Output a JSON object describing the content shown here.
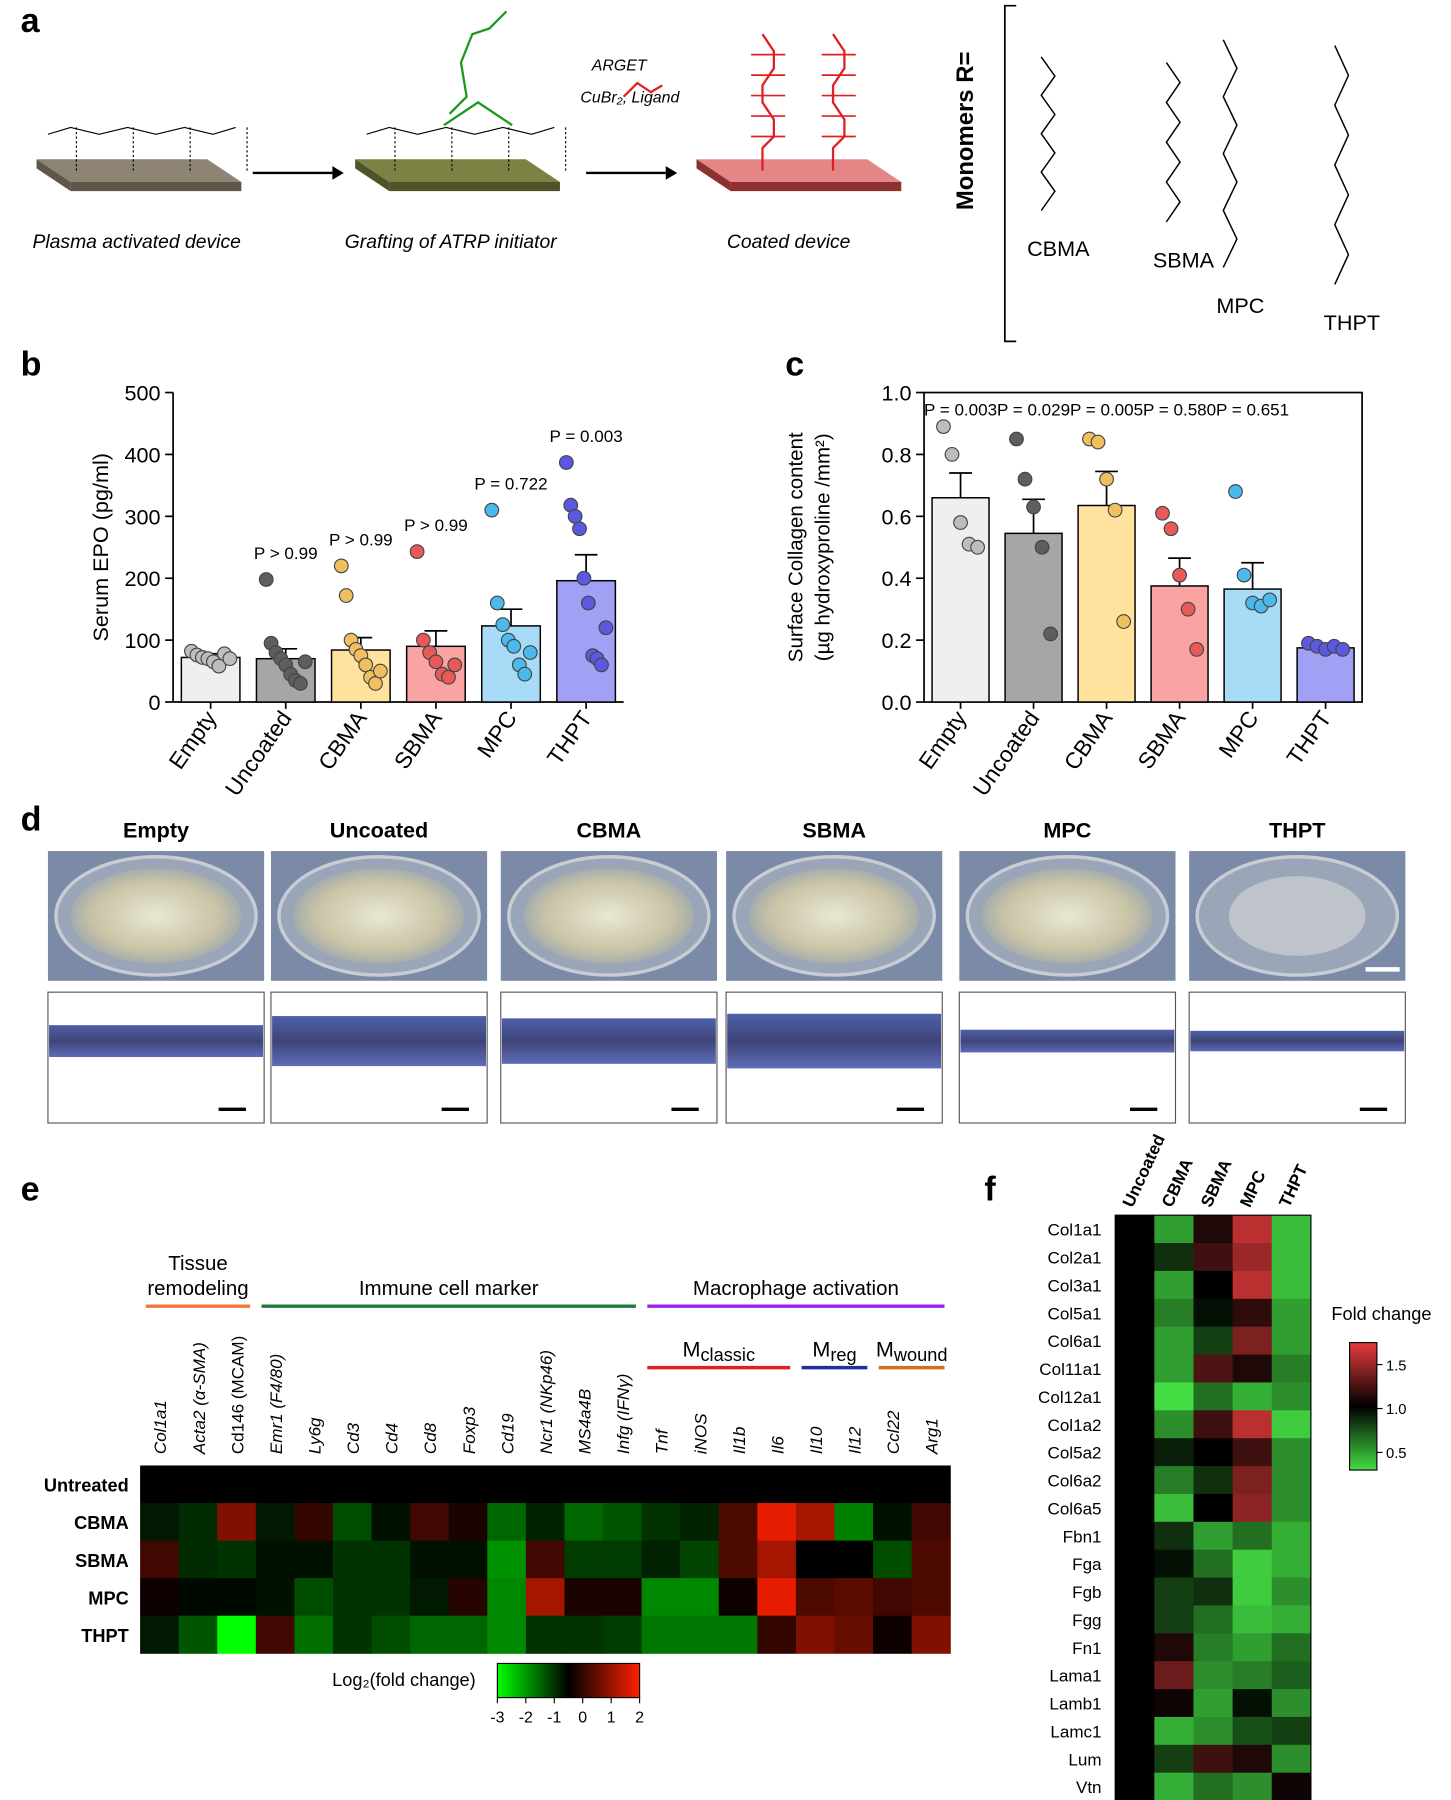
{
  "panel_labels": [
    "a",
    "b",
    "c",
    "d",
    "e",
    "f"
  ],
  "panel_a": {
    "steps": [
      "Plasma activated device",
      "Grafting of ATRP initiator",
      "Coated device"
    ],
    "conditions": [
      "ARGET",
      "CuBr₂,  Ligand"
    ],
    "monomers_title": "Monomers R=",
    "monomers": [
      "CBMA",
      "SBMA",
      "MPC",
      "THPT"
    ]
  },
  "panel_d": {
    "titles": [
      "Empty",
      "Uncoated",
      "CBMA",
      "SBMA",
      "MPC",
      "THPT"
    ]
  },
  "chart_data": [
    {
      "type": "bar",
      "ylabel": "Serum  EPO (pg/ml)",
      "categories": [
        "Empty",
        "Uncoated",
        "CBMA",
        "SBMA",
        "MPC",
        "THPT"
      ],
      "values": [
        72,
        70,
        84,
        90,
        123,
        196
      ],
      "errors": [
        6,
        16,
        20,
        25,
        27,
        42
      ],
      "points": [
        [
          82,
          76,
          72,
          70,
          65,
          58,
          78,
          70
        ],
        [
          198,
          95,
          80,
          70,
          60,
          45,
          35,
          30,
          65
        ],
        [
          220,
          172,
          100,
          85,
          75,
          60,
          40,
          30,
          50
        ],
        [
          243,
          100,
          80,
          65,
          45,
          40,
          60
        ],
        [
          310,
          160,
          125,
          100,
          90,
          60,
          45,
          80
        ],
        [
          387,
          318,
          300,
          280,
          200,
          160,
          75,
          70,
          60,
          120
        ]
      ],
      "colors": [
        "#efefef",
        "#a6a6a6",
        "#ffe29e",
        "#f9a3a3",
        "#a8dcf6",
        "#a0a0f4"
      ],
      "point_colors": [
        "#bdbdbd",
        "#5e5e5e",
        "#f0c060",
        "#e85a5a",
        "#4bb9ec",
        "#5a5ae0"
      ],
      "annotations": [
        null,
        {
          "text": "P > 0.99",
          "color": "#e02020"
        },
        {
          "text": "P > 0.99",
          "color": "#e02020"
        },
        {
          "text": "P > 0.99",
          "color": "#e02020"
        },
        {
          "text": "P = 0.722",
          "color": "#e02020"
        },
        {
          "text": "P = 0.003",
          "color": "#000000"
        }
      ],
      "ylim": [
        0,
        500
      ],
      "yticks": [
        0,
        100,
        200,
        300,
        400,
        500
      ]
    },
    {
      "type": "bar",
      "ylabel": [
        "Surface Collagen content",
        "(µg hydroxyproline /mm²)"
      ],
      "categories": [
        "Empty",
        "Uncoated",
        "CBMA",
        "SBMA",
        "MPC",
        "THPT"
      ],
      "values": [
        0.66,
        0.545,
        0.635,
        0.375,
        0.365,
        0.175
      ],
      "errors": [
        0.08,
        0.11,
        0.11,
        0.09,
        0.085,
        0.01
      ],
      "points": [
        [
          0.89,
          0.8,
          0.58,
          0.51,
          0.5
        ],
        [
          0.85,
          0.72,
          0.63,
          0.5,
          0.22
        ],
        [
          0.85,
          0.84,
          0.72,
          0.62,
          0.26
        ],
        [
          0.61,
          0.56,
          0.41,
          0.3,
          0.17
        ],
        [
          0.68,
          0.41,
          0.32,
          0.31,
          0.33
        ],
        [
          0.19,
          0.18,
          0.17,
          0.18,
          0.17
        ]
      ],
      "colors": [
        "#efefef",
        "#a6a6a6",
        "#ffe29e",
        "#f9a3a3",
        "#a8dcf6",
        "#a0a0f4"
      ],
      "point_colors": [
        "#bdbdbd",
        "#5e5e5e",
        "#f0c060",
        "#e85a5a",
        "#4bb9ec",
        "#5a5ae0"
      ],
      "annotations": [
        {
          "text": "P = 0.003",
          "color": "#000000"
        },
        {
          "text": "P = 0.029",
          "color": "#000000"
        },
        {
          "text": "P = 0.005",
          "color": "#000000"
        },
        {
          "text": "P = 0.580",
          "color": "#e02020"
        },
        {
          "text": "P = 0.651",
          "color": "#e02020"
        },
        null
      ],
      "ylim": [
        0,
        1
      ],
      "yticks": [
        {
          "value": 0,
          "label": "0.0"
        },
        0.2,
        0.4,
        0.6,
        0.8,
        {
          "value": 1,
          "label": "1.0"
        }
      ]
    },
    {
      "type": "heatmap",
      "groups": [
        {
          "lines": [
            "Tissue",
            "remodeling"
          ],
          "color": "#f4743b"
        },
        {
          "lines": [
            "Immune cell marker"
          ],
          "color": "#1b7a3e"
        },
        {
          "lines": [
            "Macrophage activation"
          ],
          "color": "#a020f0"
        }
      ],
      "subgroups": [
        {
          "main": "M",
          "sub": "classic",
          "color": "#e02020"
        },
        {
          "main": "M",
          "sub": "reg",
          "color": "#2030a0"
        },
        {
          "main": "M",
          "sub": "wound",
          "color": "#d07020"
        }
      ],
      "columns": [
        "Col1a1",
        "Acta2 (α-SMA)",
        "Cd146 (MCAM)",
        "Emr1 (F4/80)",
        "Ly6g",
        "Cd3",
        "Cd4",
        "Cd8",
        "Foxp3",
        "Cd19",
        "Ncr1 (NKp46)",
        "MS4a4B",
        "Infg (IFNγ)",
        "Tnf",
        "iNOS",
        "Il1b",
        "Il6",
        "Il10",
        "Il12",
        "Ccl22",
        "Arg1"
      ],
      "rows": [
        "Untreated",
        "CBMA",
        "SBMA",
        "MPC",
        "THPT"
      ],
      "values": [
        [
          0,
          0,
          0,
          0,
          0,
          0,
          0,
          0,
          0,
          0,
          0,
          0,
          0,
          0,
          0,
          0,
          0,
          0,
          0,
          0,
          0
        ],
        [
          -0.3,
          -0.5,
          1.0,
          -0.3,
          0.4,
          -0.9,
          -0.2,
          0.5,
          0.2,
          -1.2,
          -0.4,
          -1.2,
          -1.0,
          -0.6,
          -0.4,
          0.6,
          1.8,
          1.3,
          -1.5,
          -0.2,
          0.5
        ],
        [
          0.5,
          -0.5,
          -0.6,
          -0.2,
          -0.2,
          -0.6,
          -0.6,
          -0.2,
          -0.2,
          -1.7,
          0.5,
          -0.7,
          -0.7,
          -0.4,
          -0.8,
          0.6,
          1.3,
          0,
          0,
          -0.9,
          0.6
        ],
        [
          0.1,
          -0.1,
          -0.1,
          -0.2,
          -0.9,
          -0.6,
          -0.6,
          -0.3,
          0.3,
          -1.6,
          1.3,
          0.2,
          0.2,
          -1.6,
          -1.6,
          0.1,
          1.8,
          0.6,
          0.7,
          0.5,
          0.6
        ],
        [
          -0.3,
          -1.0,
          -3.0,
          0.5,
          -1.3,
          -0.6,
          -0.9,
          -1.2,
          -1.2,
          -1.6,
          -0.6,
          -0.6,
          -0.7,
          -1.4,
          -1.4,
          -1.4,
          0.4,
          1.0,
          0.8,
          0.1,
          1.0
        ]
      ],
      "colors": [
        "#00ff00",
        "#000000",
        "#ff2000"
      ],
      "clim": [
        -3,
        2
      ],
      "cticks": [
        -3,
        -2,
        -1,
        0,
        1,
        2
      ],
      "colorbar_title": "Log₂(fold change)"
    },
    {
      "type": "heatmap",
      "columns": [
        "Uncoated",
        "CBMA",
        "SBMA",
        "MPC",
        "THPT"
      ],
      "rows": [
        "Col1a1",
        "Col2a1",
        "Col3a1",
        "Col5a1",
        "Col6a1",
        "Col11a1",
        "Col12a1",
        "Col1a2",
        "Col5a2",
        "Col6a2",
        "Col6a5",
        "Fbn1",
        "Fga",
        "Fgb",
        "Fgg",
        "Fn1",
        "Lama1",
        "Lamb1",
        "Lamc1",
        "Lum",
        "Vtn"
      ],
      "values": [
        [
          1,
          0.5,
          1.1,
          1.6,
          0.4
        ],
        [
          1,
          0.85,
          1.2,
          1.5,
          0.4
        ],
        [
          1,
          0.5,
          1.0,
          1.6,
          0.4
        ],
        [
          1,
          0.6,
          0.95,
          1.15,
          0.5
        ],
        [
          1,
          0.5,
          0.8,
          1.4,
          0.5
        ],
        [
          1,
          0.5,
          1.25,
          1.1,
          0.6
        ],
        [
          1,
          0.3,
          0.65,
          0.45,
          0.55
        ],
        [
          1,
          0.55,
          1.2,
          1.6,
          0.35
        ],
        [
          1,
          0.9,
          1.0,
          1.2,
          0.55
        ],
        [
          1,
          0.6,
          0.85,
          1.4,
          0.55
        ],
        [
          1,
          0.4,
          1.0,
          1.45,
          0.55
        ],
        [
          1,
          0.85,
          0.5,
          0.65,
          0.45
        ],
        [
          1,
          0.95,
          0.65,
          0.35,
          0.45
        ],
        [
          1,
          0.8,
          0.85,
          0.35,
          0.55
        ],
        [
          1,
          0.8,
          0.65,
          0.4,
          0.45
        ],
        [
          1,
          1.1,
          0.6,
          0.5,
          0.65
        ],
        [
          1,
          1.35,
          0.55,
          0.6,
          0.7
        ],
        [
          1,
          1.05,
          0.5,
          0.95,
          0.55
        ],
        [
          1,
          0.45,
          0.55,
          0.75,
          0.8
        ],
        [
          1,
          0.8,
          1.2,
          1.1,
          0.55
        ],
        [
          1,
          0.45,
          0.65,
          0.55,
          1.05
        ]
      ],
      "colors": [
        "#44dd44",
        "#000000",
        "#e83c3c"
      ],
      "clim": [
        0.3,
        1.75
      ],
      "cticks": [
        0.5,
        {
          "value": 1,
          "label": "1.0"
        },
        1.5
      ],
      "colorbar_title": "Fold change"
    }
  ]
}
